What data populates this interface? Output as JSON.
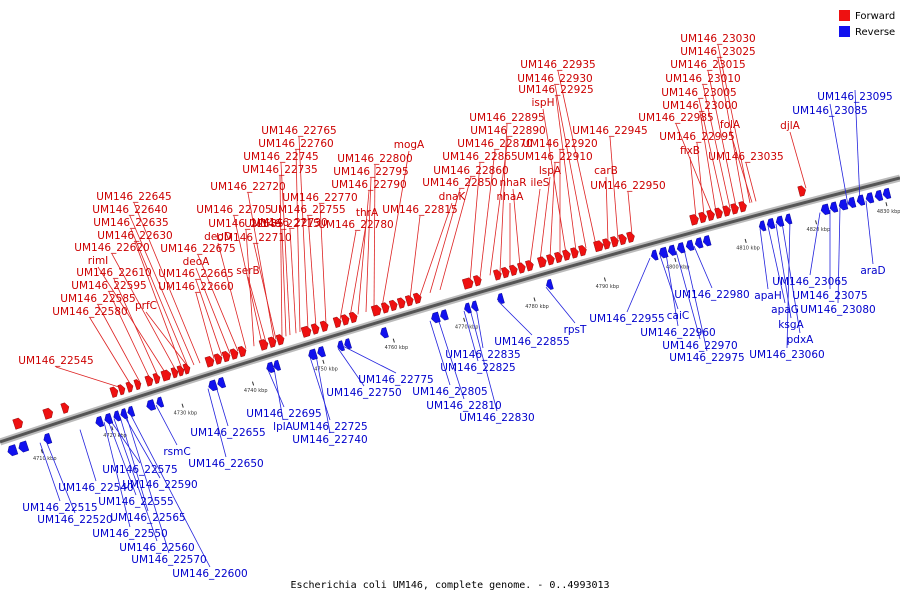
{
  "caption": "Escherichia coli UM146, complete genome. - 0..4993013",
  "legend": [
    {
      "label": "Forward",
      "color": "#ee1111"
    },
    {
      "label": "Reverse",
      "color": "#1111ee"
    }
  ],
  "ticks": [
    "4710 kbp",
    "4720 kbp",
    "4730 kbp",
    "4740 kbp",
    "4750 kbp",
    "4760 kbp",
    "4770 kbp",
    "4780 kbp",
    "4790 kbp",
    "4800 kbp",
    "4810 kbp",
    "4820 kbp",
    "4830 kbp"
  ],
  "forward_labels": [
    "UM146_22545",
    "UM146_22580",
    "UM146_22585",
    "UM146_22595",
    "UM146_22610",
    "rimI",
    "UM146_22620",
    "UM146_22630",
    "UM146_22635",
    "UM146_22640",
    "UM146_22645",
    "prfC",
    "UM146_22660",
    "UM146_22665",
    "deoA",
    "UM146_22675",
    "deoD",
    "UM146_22685",
    "UM146_22705",
    "UM146_22720",
    "UM146_22735",
    "UM146_22745",
    "UM146_22760",
    "UM146_22765",
    "serB",
    "UM146_22710",
    "UM146_22715",
    "UM146_22730",
    "UM146_22755",
    "UM146_22770",
    "UM146_22780",
    "thrA",
    "UM146_22790",
    "UM146_22795",
    "UM146_22800",
    "mogA",
    "UM146_22815",
    "dnaK",
    "UM146_22850",
    "UM146_22860",
    "UM146_22865",
    "UM146_22870",
    "UM146_22890",
    "UM146_22895",
    "nhaA",
    "nhaR",
    "ileS",
    "lspA",
    "UM146_22910",
    "UM146_22920",
    "ispH",
    "UM146_22925",
    "UM146_22930",
    "UM146_22935",
    "carB",
    "UM146_22945",
    "UM146_22950",
    "fixB",
    "UM146_22995",
    "UM146_22985",
    "UM146_23000",
    "UM146_23005",
    "UM146_23010",
    "UM146_23015",
    "UM146_23025",
    "UM146_23030",
    "folA",
    "UM146_23035",
    "djlA"
  ],
  "reverse_labels": [
    "UM146_22515",
    "UM146_22520",
    "UM146_22540",
    "UM146_22550",
    "UM146_22555",
    "UM146_22560",
    "UM146_22565",
    "UM146_22570",
    "UM146_22575",
    "UM146_22590",
    "UM146_22600",
    "rsmC",
    "UM146_22650",
    "UM146_22655",
    "UM146_22695",
    "lplA",
    "UM146_22725",
    "UM146_22740",
    "UM146_22750",
    "UM146_22775",
    "UM146_22805",
    "UM146_22810",
    "UM146_22825",
    "UM146_22830",
    "UM146_22835",
    "UM146_22855",
    "rpsT",
    "UM146_22955",
    "caiC",
    "UM146_22960",
    "UM146_22970",
    "UM146_22975",
    "UM146_22980",
    "apaH",
    "apaG",
    "ksgA",
    "pdxA",
    "UM146_23060",
    "UM146_23065",
    "UM146_23075",
    "UM146_23080",
    "araD",
    "UM146_23085",
    "UM146_23095"
  ]
}
